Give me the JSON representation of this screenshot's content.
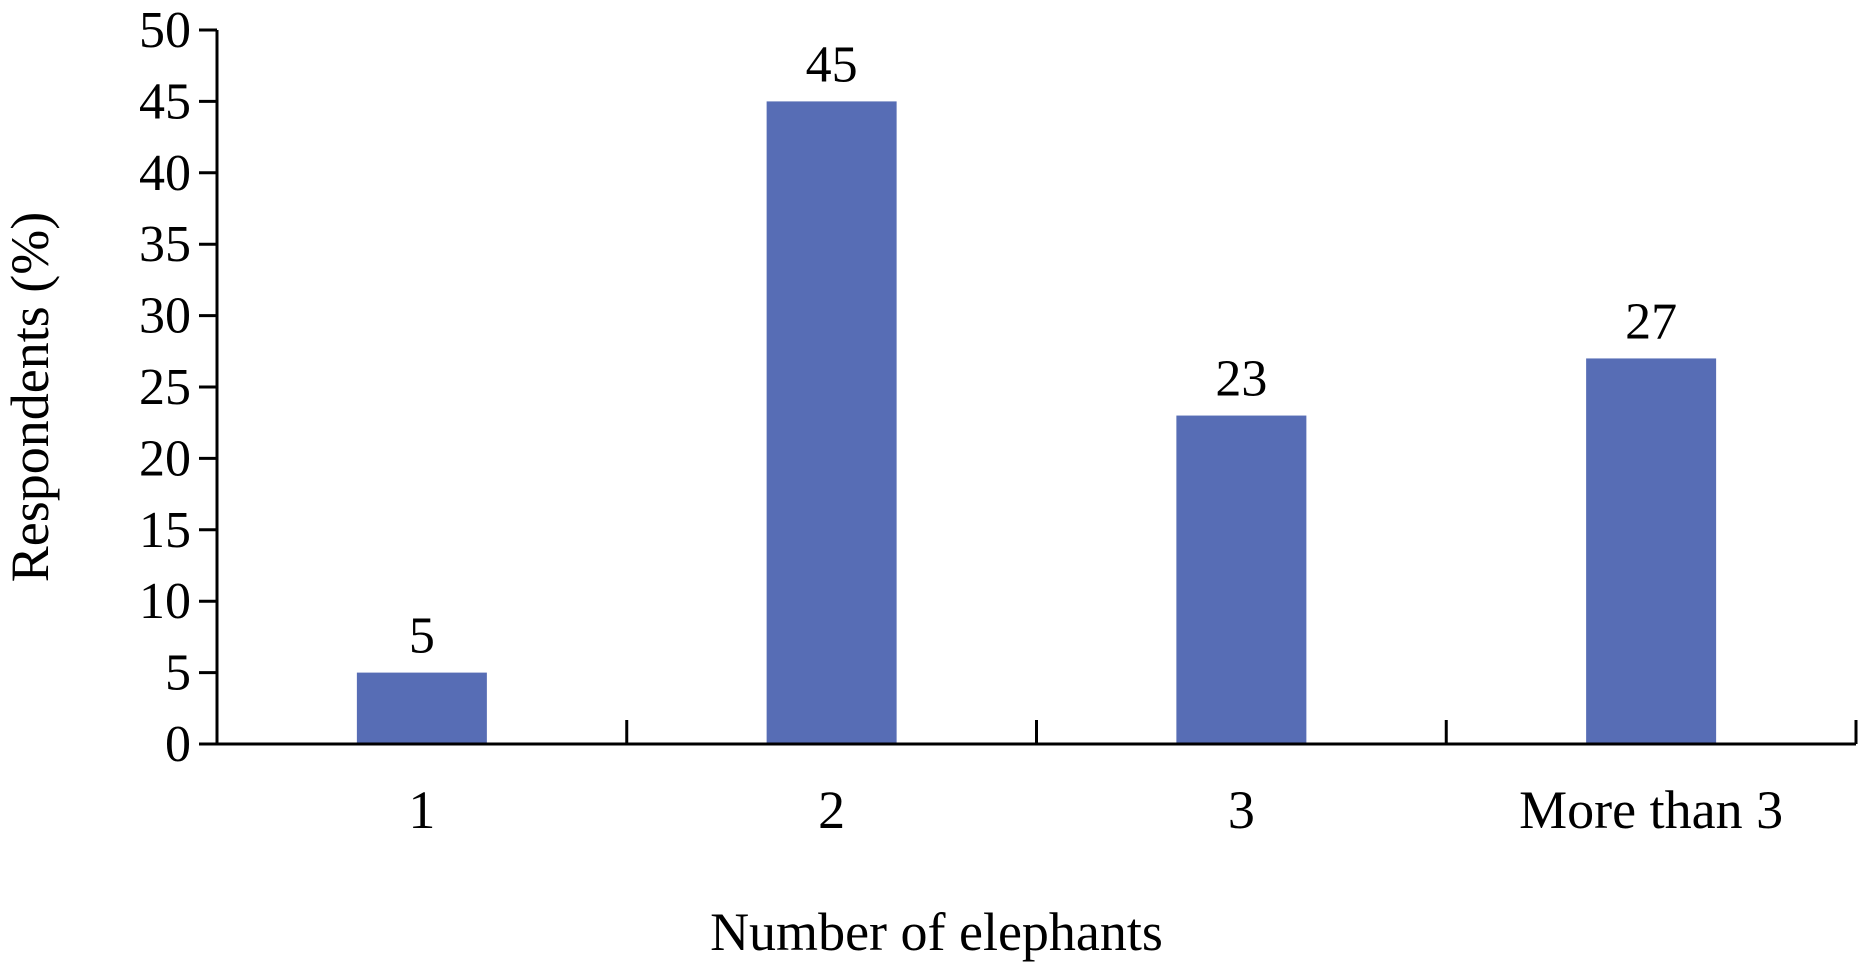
{
  "chart_data": {
    "type": "bar",
    "categories": [
      "1",
      "2",
      "3",
      "More than 3"
    ],
    "values": [
      5,
      45,
      23,
      27
    ],
    "data_labels": [
      "5",
      "45",
      "23",
      "27"
    ],
    "xlabel": "Number of elephants",
    "ylabel": "Respondents (%)",
    "ylim": [
      0,
      50
    ],
    "yticks": [
      0,
      5,
      10,
      15,
      20,
      25,
      30,
      35,
      40,
      45,
      50
    ],
    "grid": false,
    "legend": "none",
    "bar_color": "#576db5",
    "axis_color": "#000000"
  }
}
